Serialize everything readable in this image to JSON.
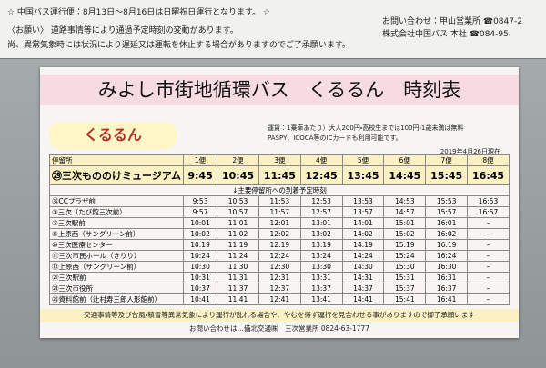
{
  "notice": {
    "lines": [
      "☆ 中国バス運行便：8月13日～8月16日は日曜祝日運行となります。 ☆",
      "〈お願い〉 道路事情等により通過予定時刻の変動があります。",
      "尚、異常気象時には状況により遅延又は運転を休止する場合がありますのでご了承願います。"
    ],
    "contacts": [
      "お問い合わせ：甲山営業所 ☎0847-2",
      "株式会社中国バス 本社 ☎084-95"
    ]
  },
  "sign": {
    "title": "みよし市街地循環バス　くるるん　時刻表",
    "logo": "くるるん",
    "fare": [
      "運賃：1乗車あたり）大人200円・高校生までは100円・1歳未満は無料",
      "PASPY、ICOCA等のICカードも利用可能です。"
    ],
    "date": "2019年4月26日現在",
    "table": {
      "header": [
        "停留所",
        "1便",
        "2便",
        "3便",
        "4便",
        "5便",
        "6便",
        "7便",
        "8便"
      ],
      "first_row": {
        "stop": "㉙三次もののけミュージアム",
        "times": [
          "9:45",
          "10:45",
          "11:45",
          "12:45",
          "13:45",
          "14:45",
          "15:45",
          "16:45"
        ]
      },
      "note": "↓主要停留所への到着予定時刻",
      "rows": [
        {
          "stop": "㉟CCプラザ前",
          "times": [
            "9:53",
            "10:53",
            "11:53",
            "12:53",
            "13:53",
            "14:53",
            "15:53",
            "16:53"
          ]
        },
        {
          "stop": "①三次（たび館三次前）",
          "times": [
            "9:57",
            "10:57",
            "11:57",
            "12:57",
            "13:57",
            "14:57",
            "15:57",
            "16:57"
          ]
        },
        {
          "stop": "③三次駅前",
          "times": [
            "10:01",
            "11:01",
            "12:01",
            "13:01",
            "14:01",
            "15:01",
            "16:01",
            "–"
          ]
        },
        {
          "stop": "⑤上原西（サングリーン前）",
          "times": [
            "10:02",
            "11:02",
            "12:02",
            "13:02",
            "14:02",
            "15:02",
            "16:02",
            "–"
          ]
        },
        {
          "stop": "⑩三次医療センター",
          "times": [
            "10:19",
            "11:19",
            "12:19",
            "13:19",
            "14:19",
            "15:19",
            "16:19",
            "–"
          ]
        },
        {
          "stop": "⑪三次市民ホール（きりり）",
          "times": [
            "10:24",
            "11:24",
            "12:24",
            "13:24",
            "14:24",
            "15:24",
            "16:24",
            "–"
          ]
        },
        {
          "stop": "⑬上原西（サングリーン前）",
          "times": [
            "10:30",
            "11:30",
            "12:30",
            "13:30",
            "14:30",
            "15:30",
            "16:30",
            "–"
          ]
        },
        {
          "stop": "㉑三次駅前",
          "times": [
            "10:31",
            "11:31",
            "12:31",
            "13:31",
            "14:31",
            "15:31",
            "16:31",
            "–"
          ]
        },
        {
          "stop": "㉓三次市役所",
          "times": [
            "10:37",
            "11:37",
            "12:37",
            "13:37",
            "14:37",
            "15:37",
            "16:37",
            "–"
          ]
        },
        {
          "stop": "㉖資料館前（辻村寿三郎人形館前）",
          "times": [
            "10:41",
            "11:41",
            "12:41",
            "13:41",
            "14:41",
            "15:41",
            "16:41",
            "–"
          ]
        }
      ]
    },
    "footer": [
      "交通事情等及び台風・積雪等異常気象により運行が乱れる場合や、やむを得ず運行を見合わせる事がありますので御了承願います",
      "お問い合わせは…備北交通㈱　三次営業所 0824-63-1777"
    ]
  }
}
